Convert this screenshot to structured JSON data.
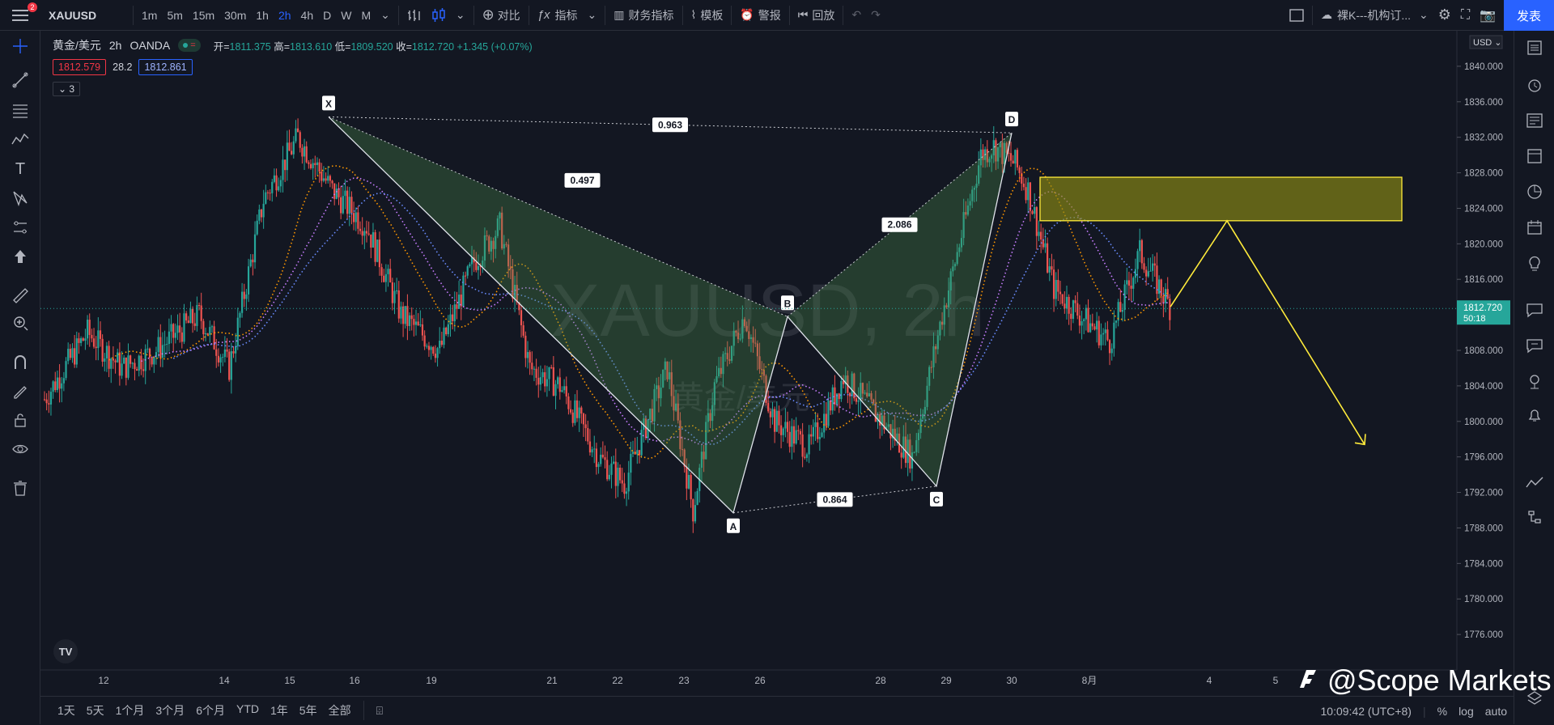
{
  "app": {
    "symbol": "XAUUSD",
    "notification_count": "2",
    "timeframes": [
      "1m",
      "5m",
      "15m",
      "30m",
      "1h",
      "2h",
      "4h",
      "D",
      "W",
      "M"
    ],
    "active_timeframe": "2h",
    "toolbar": {
      "compare": "对比",
      "indicators": "指标",
      "financials": "财务指标",
      "templates": "模板",
      "alerts": "警报",
      "replay": "回放",
      "layout_name": "裸K---机构订...",
      "publish": "发表"
    }
  },
  "legend": {
    "title": "黄金/美元",
    "interval": "2h",
    "source": "OANDA",
    "open_label": "开=",
    "open": "1811.375",
    "high_label": "高=",
    "high": "1813.610",
    "low_label": "低=",
    "low": "1809.520",
    "close_label": "收=",
    "close": "1812.720",
    "change": "+1.345 (+0.07%)",
    "bid": "1812.579",
    "spread": "28.2",
    "ask": "1812.861",
    "collapsed_count": "3"
  },
  "chart_data": {
    "type": "candlestick",
    "watermark": "XAUUSD, 2h",
    "watermark_sub": "黄金/美元",
    "currency": "USD",
    "ylim": [
      1772,
      1844
    ],
    "y_ticks": [
      "1840.000",
      "1836.000",
      "1832.000",
      "1828.000",
      "1824.000",
      "1820.000",
      "1816.000",
      "1812.000",
      "1808.000",
      "1804.000",
      "1800.000",
      "1796.000",
      "1792.000",
      "1788.000",
      "1784.000",
      "1780.000",
      "1776.000"
    ],
    "y_ticks_values": [
      1840,
      1836,
      1832,
      1828,
      1824,
      1820,
      1816,
      1812,
      1808,
      1804,
      1800,
      1796,
      1792,
      1788,
      1784,
      1780,
      1776
    ],
    "last_price": "1812.720",
    "last_price_value": 1812.72,
    "countdown": "50:18",
    "x_ticks": [
      "12",
      "14",
      "15",
      "16",
      "19",
      "21",
      "22",
      "23",
      "26",
      "28",
      "29",
      "30",
      "8月",
      "4",
      "5"
    ],
    "pattern": {
      "points": [
        {
          "label": "X",
          "price": 1834.3
        },
        {
          "label": "A",
          "price": 1789.7
        },
        {
          "label": "B",
          "price": 1811.8
        },
        {
          "label": "C",
          "price": 1792.7
        },
        {
          "label": "D",
          "price": 1832.5
        }
      ],
      "ratios": [
        "0.963",
        "0.497",
        "2.086",
        "0.864"
      ]
    },
    "zone": {
      "top": 1827.5,
      "bottom": 1822.6
    },
    "projection": [
      1812.9,
      1822.6,
      1797.4
    ]
  },
  "bottom": {
    "ranges": [
      "1天",
      "5天",
      "1个月",
      "3个月",
      "6个月",
      "YTD",
      "1年",
      "5年",
      "全部"
    ],
    "clock": "10:09:42 (UTC+8)",
    "percent": "%",
    "log": "log",
    "auto": "auto",
    "watermark": "@Scope Markets"
  },
  "colors": {
    "up": "#26a69a",
    "down": "#ef5350",
    "accent": "#2962ff",
    "zone": "#6b6a14"
  }
}
